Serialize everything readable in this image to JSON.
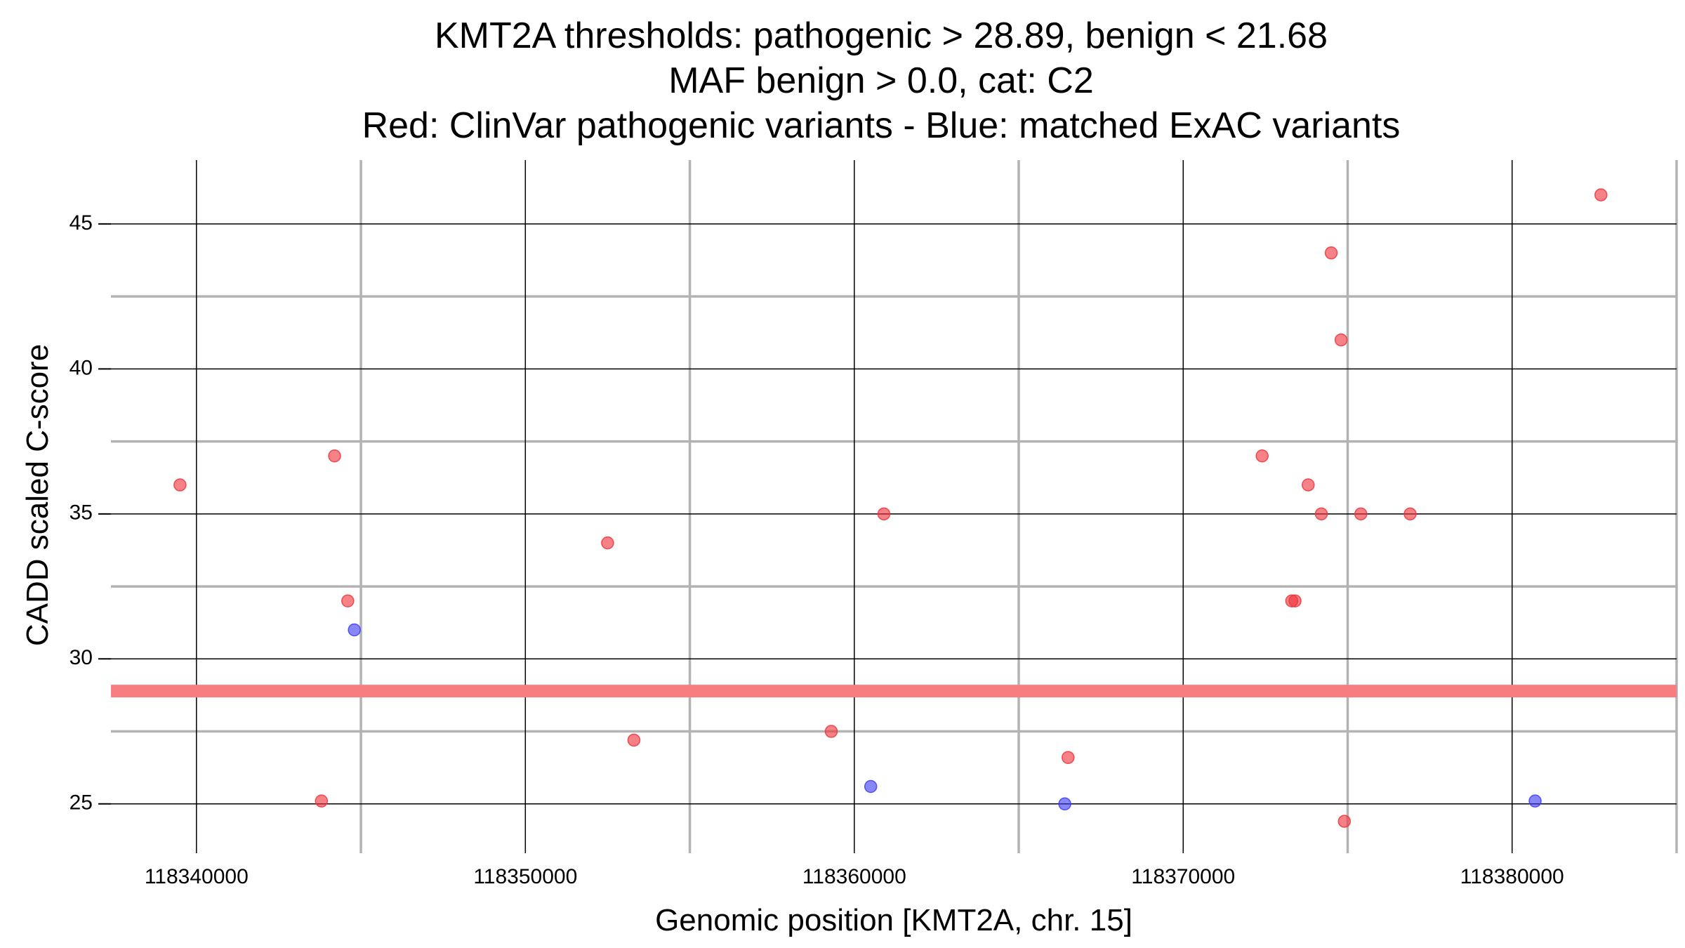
{
  "chart_data": {
    "type": "scatter",
    "title_lines": [
      "KMT2A thresholds: pathogenic > 28.89, benign < 21.68",
      "MAF benign > 0.0, cat: C2",
      "Red: ClinVar pathogenic variants - Blue: matched ExAC variants"
    ],
    "xlabel": "Genomic position [KMT2A, chr. 15]",
    "ylabel": "CADD scaled C-score",
    "xlim": [
      118337400,
      118385000
    ],
    "ylim": [
      23.3,
      47.2
    ],
    "x_ticks": [
      118340000,
      118350000,
      118360000,
      118370000,
      118380000
    ],
    "x_tick_labels": [
      "118340000",
      "118350000",
      "118360000",
      "118370000",
      "118380000"
    ],
    "y_ticks": [
      25,
      30,
      35,
      40,
      45
    ],
    "y_tick_labels": [
      "25",
      "30",
      "35",
      "40",
      "45"
    ],
    "grid": true,
    "threshold": {
      "name": "pathogenic",
      "value": 28.89,
      "color": "#f87d80"
    },
    "series": [
      {
        "key": "clinvar",
        "color": "#f0343c",
        "points": [
          {
            "x": 118339500,
            "y": 36.0
          },
          {
            "x": 118344200,
            "y": 37.0
          },
          {
            "x": 118344600,
            "y": 32.0
          },
          {
            "x": 118343800,
            "y": 25.1
          },
          {
            "x": 118352500,
            "y": 34.0
          },
          {
            "x": 118353300,
            "y": 27.2
          },
          {
            "x": 118359300,
            "y": 27.5
          },
          {
            "x": 118360900,
            "y": 35.0
          },
          {
            "x": 118366500,
            "y": 26.6
          },
          {
            "x": 118372400,
            "y": 37.0
          },
          {
            "x": 118373300,
            "y": 32.0
          },
          {
            "x": 118373400,
            "y": 32.0
          },
          {
            "x": 118373800,
            "y": 36.0
          },
          {
            "x": 118374200,
            "y": 35.0
          },
          {
            "x": 118374500,
            "y": 44.0
          },
          {
            "x": 118374800,
            "y": 41.0
          },
          {
            "x": 118374900,
            "y": 24.4
          },
          {
            "x": 118375400,
            "y": 35.0
          },
          {
            "x": 118376900,
            "y": 35.0
          },
          {
            "x": 118382700,
            "y": 46.0
          }
        ]
      },
      {
        "key": "exac",
        "color": "#3d3df5",
        "points": [
          {
            "x": 118344800,
            "y": 31.0
          },
          {
            "x": 118360500,
            "y": 25.6
          },
          {
            "x": 118366400,
            "y": 25.0
          },
          {
            "x": 118380700,
            "y": 25.1
          }
        ]
      }
    ]
  }
}
